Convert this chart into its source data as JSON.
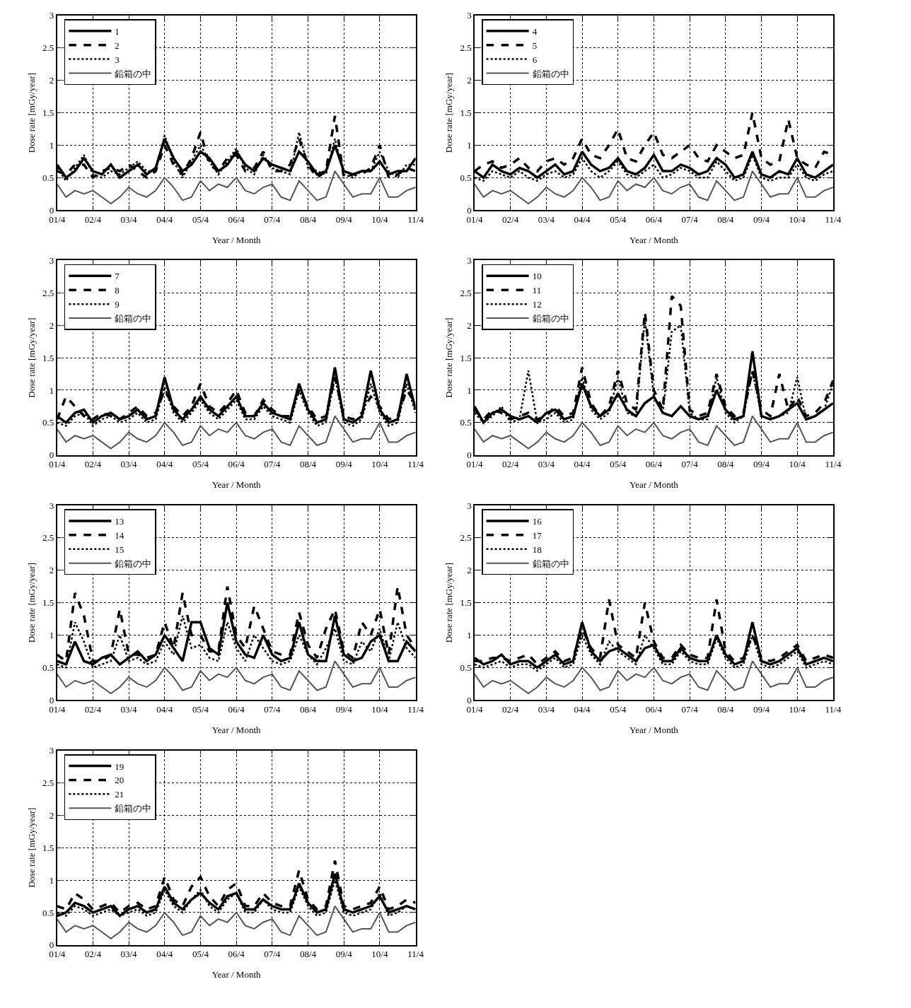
{
  "chart_data": [
    {
      "type": "line",
      "xlabel": "Year / Month",
      "ylabel": "Dose rate [mGy/year]",
      "ylim": [
        0,
        3
      ],
      "yticks": [
        0,
        0.5,
        1,
        1.5,
        2,
        2.5,
        3
      ],
      "grid": true,
      "legend": "top left",
      "categories": [
        "01/4",
        null,
        null,
        null,
        "02/4",
        null,
        null,
        null,
        "03/4",
        null,
        null,
        null,
        "04/4",
        null,
        null,
        null,
        "05/4",
        null,
        null,
        null,
        "06/4",
        null,
        null,
        null,
        "07/4",
        null,
        null,
        null,
        "08/4",
        null,
        null,
        null,
        "09/4",
        null,
        null,
        null,
        "10/4",
        null,
        null,
        null,
        "11/4"
      ],
      "series": [
        {
          "name": "1",
          "color": "#000000",
          "line_style": "solid",
          "values": [
            0.7,
            0.5,
            0.6,
            0.8,
            0.6,
            0.55,
            0.7,
            0.5,
            0.6,
            0.7,
            0.55,
            0.65,
            1.1,
            0.8,
            0.6,
            0.7,
            0.9,
            0.8,
            0.6,
            0.7,
            0.9,
            0.7,
            0.6,
            0.8,
            0.7,
            0.65,
            0.6,
            0.9,
            0.75,
            0.55,
            0.6,
            1.0,
            0.6,
            0.55,
            0.6,
            0.6,
            0.75,
            0.55,
            0.6,
            0.6,
            0.8
          ]
        },
        {
          "name": "2",
          "color": "#000000",
          "line_style": "dashed",
          "values": [
            0.6,
            0.55,
            0.7,
            0.7,
            0.5,
            0.6,
            0.65,
            0.6,
            0.7,
            0.6,
            0.5,
            0.6,
            1.0,
            0.7,
            0.55,
            0.8,
            1.2,
            0.7,
            0.6,
            0.8,
            0.85,
            0.6,
            0.65,
            0.9,
            0.6,
            0.6,
            0.7,
            1.1,
            0.7,
            0.5,
            0.6,
            1.45,
            0.5,
            0.55,
            0.55,
            0.65,
            1.0,
            0.5,
            0.55,
            0.65,
            0.6
          ]
        },
        {
          "name": "3",
          "color": "#000000",
          "line_style": "dotted",
          "values": [
            0.65,
            0.45,
            0.65,
            0.85,
            0.55,
            0.5,
            0.6,
            0.55,
            0.65,
            0.75,
            0.6,
            0.6,
            1.15,
            0.75,
            0.5,
            0.75,
            1.0,
            0.75,
            0.55,
            0.75,
            0.95,
            0.65,
            0.55,
            0.85,
            0.65,
            0.6,
            0.55,
            1.2,
            0.65,
            0.6,
            0.55,
            1.1,
            0.55,
            0.5,
            0.6,
            0.6,
            0.9,
            0.6,
            0.5,
            0.7,
            0.7
          ]
        },
        {
          "name": "鉛箱の中",
          "color": "#555555",
          "line_style": "solid",
          "values": [
            0.4,
            0.2,
            0.3,
            0.25,
            0.3,
            0.2,
            0.1,
            0.2,
            0.35,
            0.25,
            0.2,
            0.3,
            0.5,
            0.35,
            0.15,
            0.2,
            0.45,
            0.3,
            0.4,
            0.35,
            0.5,
            0.3,
            0.25,
            0.35,
            0.4,
            0.2,
            0.15,
            0.45,
            0.3,
            0.15,
            0.2,
            0.6,
            0.4,
            0.2,
            0.25,
            0.25,
            0.5,
            0.2,
            0.2,
            0.3,
            0.35
          ]
        }
      ]
    },
    {
      "type": "line",
      "xlabel": "Year / Month",
      "ylabel": "Dose rate [mGy/year]",
      "ylim": [
        0,
        3
      ],
      "yticks": [
        0,
        0.5,
        1,
        1.5,
        2,
        2.5,
        3
      ],
      "grid": true,
      "legend": "top left",
      "categories": [
        "01/4",
        null,
        null,
        null,
        "02/4",
        null,
        null,
        null,
        "03/4",
        null,
        null,
        null,
        "04/4",
        null,
        null,
        null,
        "05/4",
        null,
        null,
        null,
        "06/4",
        null,
        null,
        null,
        "07/4",
        null,
        null,
        null,
        "08/4",
        null,
        null,
        null,
        "09/4",
        null,
        null,
        null,
        "10/4",
        null,
        null,
        null,
        "11/4"
      ],
      "series": [
        {
          "name": "4",
          "color": "#000000",
          "line_style": "solid",
          "values": [
            0.6,
            0.5,
            0.7,
            0.6,
            0.55,
            0.65,
            0.6,
            0.5,
            0.6,
            0.7,
            0.55,
            0.6,
            0.9,
            0.7,
            0.6,
            0.65,
            0.8,
            0.6,
            0.55,
            0.65,
            0.85,
            0.6,
            0.6,
            0.7,
            0.65,
            0.55,
            0.6,
            0.8,
            0.7,
            0.5,
            0.55,
            0.9,
            0.55,
            0.5,
            0.6,
            0.55,
            0.8,
            0.55,
            0.5,
            0.6,
            0.7
          ]
        },
        {
          "name": "5",
          "color": "#000000",
          "line_style": "dashed",
          "values": [
            0.6,
            0.7,
            0.75,
            0.65,
            0.7,
            0.8,
            0.65,
            0.6,
            0.75,
            0.8,
            0.7,
            0.8,
            1.1,
            0.85,
            0.8,
            1.0,
            1.25,
            0.8,
            0.75,
            1.0,
            1.2,
            0.85,
            0.8,
            0.9,
            1.0,
            0.8,
            0.75,
            1.0,
            0.9,
            0.8,
            0.85,
            1.5,
            0.8,
            0.7,
            0.75,
            1.4,
            0.8,
            0.7,
            0.65,
            0.9,
            0.85
          ]
        },
        {
          "name": "6",
          "color": "#000000",
          "line_style": "dotted",
          "values": [
            0.5,
            0.45,
            0.6,
            0.55,
            0.5,
            0.6,
            0.5,
            0.45,
            0.55,
            0.6,
            0.5,
            0.55,
            0.8,
            0.6,
            0.5,
            0.6,
            0.75,
            0.55,
            0.5,
            0.6,
            0.7,
            0.5,
            0.55,
            0.65,
            0.6,
            0.5,
            0.5,
            0.75,
            0.6,
            0.45,
            0.5,
            0.85,
            0.5,
            0.45,
            0.5,
            0.5,
            0.7,
            0.5,
            0.45,
            0.55,
            0.6
          ]
        },
        {
          "name": "鉛箱の中",
          "color": "#555555",
          "line_style": "solid",
          "values": [
            0.4,
            0.2,
            0.3,
            0.25,
            0.3,
            0.2,
            0.1,
            0.2,
            0.35,
            0.25,
            0.2,
            0.3,
            0.5,
            0.35,
            0.15,
            0.2,
            0.45,
            0.3,
            0.4,
            0.35,
            0.5,
            0.3,
            0.25,
            0.35,
            0.4,
            0.2,
            0.15,
            0.45,
            0.3,
            0.15,
            0.2,
            0.6,
            0.4,
            0.2,
            0.25,
            0.25,
            0.5,
            0.2,
            0.2,
            0.3,
            0.35
          ]
        }
      ]
    },
    {
      "type": "line",
      "xlabel": "Year / Month",
      "ylabel": "Dose rate [mGy/year]",
      "ylim": [
        0,
        3
      ],
      "yticks": [
        0,
        0.5,
        1,
        1.5,
        2,
        2.5,
        3
      ],
      "grid": true,
      "legend": "top left",
      "categories": [
        "01/4",
        null,
        null,
        null,
        "02/4",
        null,
        null,
        null,
        "03/4",
        null,
        null,
        null,
        "04/4",
        null,
        null,
        null,
        "05/4",
        null,
        null,
        null,
        "06/4",
        null,
        null,
        null,
        "07/4",
        null,
        null,
        null,
        "08/4",
        null,
        null,
        null,
        "09/4",
        null,
        null,
        null,
        "10/4",
        null,
        null,
        null,
        "11/4"
      ],
      "series": [
        {
          "name": "7",
          "color": "#000000",
          "line_style": "solid",
          "values": [
            0.6,
            0.5,
            0.65,
            0.7,
            0.5,
            0.6,
            0.65,
            0.55,
            0.6,
            0.7,
            0.55,
            0.6,
            1.2,
            0.7,
            0.55,
            0.7,
            0.9,
            0.7,
            0.6,
            0.75,
            0.9,
            0.6,
            0.6,
            0.8,
            0.65,
            0.6,
            0.55,
            1.1,
            0.7,
            0.5,
            0.55,
            1.35,
            0.55,
            0.5,
            0.6,
            1.3,
            0.7,
            0.5,
            0.55,
            1.25,
            0.7
          ]
        },
        {
          "name": "8",
          "color": "#000000",
          "line_style": "dashed",
          "values": [
            0.55,
            0.9,
            0.75,
            0.6,
            0.55,
            0.65,
            0.6,
            0.55,
            0.65,
            0.75,
            0.6,
            0.65,
            1.0,
            0.75,
            0.6,
            0.75,
            1.1,
            0.75,
            0.65,
            0.8,
            1.0,
            0.65,
            0.6,
            0.85,
            0.7,
            0.6,
            0.6,
            1.0,
            0.75,
            0.55,
            0.6,
            1.2,
            0.6,
            0.55,
            0.65,
            0.9,
            0.75,
            0.55,
            0.6,
            1.0,
            0.8
          ]
        },
        {
          "name": "9",
          "color": "#000000",
          "line_style": "dotted",
          "values": [
            0.5,
            0.45,
            0.6,
            0.65,
            0.45,
            0.55,
            0.6,
            0.5,
            0.55,
            0.65,
            0.5,
            0.55,
            1.05,
            0.65,
            0.5,
            0.65,
            0.85,
            0.65,
            0.55,
            0.7,
            0.85,
            0.55,
            0.55,
            0.75,
            0.6,
            0.55,
            0.5,
            1.0,
            0.65,
            0.45,
            0.5,
            1.2,
            0.5,
            0.45,
            0.55,
            1.1,
            0.65,
            0.45,
            0.5,
            1.1,
            0.65
          ]
        },
        {
          "name": "鉛箱の中",
          "color": "#555555",
          "line_style": "solid",
          "values": [
            0.4,
            0.2,
            0.3,
            0.25,
            0.3,
            0.2,
            0.1,
            0.2,
            0.35,
            0.25,
            0.2,
            0.3,
            0.5,
            0.35,
            0.15,
            0.2,
            0.45,
            0.3,
            0.4,
            0.35,
            0.5,
            0.3,
            0.25,
            0.35,
            0.4,
            0.2,
            0.15,
            0.45,
            0.3,
            0.15,
            0.2,
            0.6,
            0.4,
            0.2,
            0.25,
            0.25,
            0.5,
            0.2,
            0.2,
            0.3,
            0.35
          ]
        }
      ]
    },
    {
      "type": "line",
      "xlabel": "Year / Month",
      "ylabel": "Dose rate [mGy/year]",
      "ylim": [
        0,
        3
      ],
      "yticks": [
        0,
        0.5,
        1,
        1.5,
        2,
        2.5,
        3
      ],
      "grid": true,
      "legend": "top left",
      "categories": [
        "01/4",
        null,
        null,
        null,
        "02/4",
        null,
        null,
        null,
        "03/4",
        null,
        null,
        null,
        "04/4",
        null,
        null,
        null,
        "05/4",
        null,
        null,
        null,
        "06/4",
        null,
        null,
        null,
        "07/4",
        null,
        null,
        null,
        "08/4",
        null,
        null,
        null,
        "09/4",
        null,
        null,
        null,
        "10/4",
        null,
        null,
        null,
        "11/4"
      ],
      "series": [
        {
          "name": "10",
          "color": "#000000",
          "line_style": "solid",
          "values": [
            0.75,
            0.5,
            0.65,
            0.7,
            0.6,
            0.55,
            0.6,
            0.5,
            0.65,
            0.7,
            0.55,
            0.6,
            1.1,
            0.75,
            0.6,
            0.7,
            0.95,
            0.7,
            0.6,
            0.8,
            0.9,
            0.65,
            0.6,
            0.75,
            0.6,
            0.55,
            0.6,
            1.0,
            0.7,
            0.55,
            0.6,
            1.6,
            0.6,
            0.55,
            0.6,
            0.7,
            0.8,
            0.55,
            0.6,
            0.7,
            0.8
          ]
        },
        {
          "name": "11",
          "color": "#000000",
          "line_style": "dashed",
          "values": [
            0.7,
            0.55,
            0.7,
            0.65,
            0.55,
            0.6,
            0.65,
            0.55,
            0.6,
            0.75,
            0.6,
            0.65,
            1.35,
            0.8,
            0.6,
            0.75,
            1.3,
            0.8,
            0.7,
            2.2,
            1.0,
            0.7,
            2.45,
            2.3,
            0.7,
            0.6,
            0.65,
            1.25,
            0.75,
            0.6,
            0.65,
            1.3,
            0.7,
            0.6,
            1.25,
            0.7,
            0.9,
            0.6,
            0.65,
            0.8,
            1.15
          ]
        },
        {
          "name": "12",
          "color": "#000000",
          "line_style": "dotted",
          "values": [
            0.65,
            0.5,
            0.6,
            0.75,
            0.5,
            0.55,
            1.3,
            0.5,
            0.55,
            0.65,
            0.5,
            0.55,
            1.2,
            0.7,
            0.55,
            0.65,
            1.2,
            0.65,
            0.6,
            2.1,
            0.9,
            0.65,
            1.9,
            2.0,
            0.65,
            0.55,
            0.55,
            1.2,
            0.65,
            0.5,
            0.6,
            1.3,
            0.6,
            0.55,
            0.6,
            0.65,
            1.2,
            0.55,
            0.6,
            0.7,
            1.1
          ]
        },
        {
          "name": "鉛箱の中",
          "color": "#555555",
          "line_style": "solid",
          "values": [
            0.4,
            0.2,
            0.3,
            0.25,
            0.3,
            0.2,
            0.1,
            0.2,
            0.35,
            0.25,
            0.2,
            0.3,
            0.5,
            0.35,
            0.15,
            0.2,
            0.45,
            0.3,
            0.4,
            0.35,
            0.5,
            0.3,
            0.25,
            0.35,
            0.4,
            0.2,
            0.15,
            0.45,
            0.3,
            0.15,
            0.2,
            0.6,
            0.4,
            0.2,
            0.25,
            0.25,
            0.5,
            0.2,
            0.2,
            0.3,
            0.35
          ]
        }
      ]
    },
    {
      "type": "line",
      "xlabel": "Year / Month",
      "ylabel": "Dose rate [mGy/year]",
      "ylim": [
        0,
        3
      ],
      "yticks": [
        0,
        0.5,
        1,
        1.5,
        2,
        2.5,
        3
      ],
      "grid": true,
      "legend": "top left",
      "categories": [
        "01/4",
        null,
        null,
        null,
        "02/4",
        null,
        null,
        null,
        "03/4",
        null,
        null,
        null,
        "04/4",
        null,
        null,
        null,
        "05/4",
        null,
        null,
        null,
        "06/4",
        null,
        null,
        null,
        "07/4",
        null,
        null,
        null,
        "08/4",
        null,
        null,
        null,
        "09/4",
        null,
        null,
        null,
        "10/4",
        null,
        null,
        null,
        "11/4"
      ],
      "series": [
        {
          "name": "13",
          "color": "#000000",
          "line_style": "solid",
          "values": [
            0.6,
            0.55,
            0.9,
            0.6,
            0.55,
            0.65,
            0.7,
            0.55,
            0.65,
            0.75,
            0.6,
            0.7,
            1.0,
            0.8,
            0.6,
            1.2,
            1.2,
            0.8,
            0.7,
            1.5,
            0.9,
            0.7,
            0.65,
            1.0,
            0.7,
            0.6,
            0.65,
            1.2,
            0.7,
            0.6,
            0.6,
            1.3,
            0.7,
            0.6,
            0.65,
            0.9,
            1.0,
            0.6,
            0.6,
            0.9,
            0.75
          ]
        },
        {
          "name": "14",
          "color": "#000000",
          "line_style": "dashed",
          "values": [
            0.7,
            0.6,
            1.65,
            1.3,
            0.6,
            0.6,
            0.7,
            1.4,
            0.7,
            0.7,
            0.65,
            0.7,
            1.2,
            0.8,
            1.65,
            1.0,
            1.0,
            0.75,
            0.75,
            1.75,
            1.0,
            0.8,
            1.45,
            1.1,
            0.75,
            0.7,
            0.7,
            1.35,
            0.85,
            0.65,
            1.1,
            1.4,
            0.75,
            0.65,
            1.2,
            1.0,
            1.4,
            0.7,
            1.75,
            1.0,
            0.8
          ]
        },
        {
          "name": "15",
          "color": "#000000",
          "line_style": "dotted",
          "values": [
            0.55,
            0.5,
            1.2,
            0.9,
            0.5,
            0.55,
            0.6,
            1.0,
            0.6,
            0.65,
            0.55,
            0.6,
            0.9,
            0.7,
            1.3,
            0.8,
            0.85,
            0.65,
            0.6,
            1.2,
            0.8,
            0.6,
            1.0,
            0.8,
            0.6,
            0.55,
            0.6,
            1.0,
            0.7,
            0.55,
            0.8,
            1.1,
            0.6,
            0.55,
            0.9,
            0.75,
            1.1,
            0.6,
            1.2,
            0.8,
            0.65
          ]
        },
        {
          "name": "鉛箱の中",
          "color": "#555555",
          "line_style": "solid",
          "values": [
            0.4,
            0.2,
            0.3,
            0.25,
            0.3,
            0.2,
            0.1,
            0.2,
            0.35,
            0.25,
            0.2,
            0.3,
            0.5,
            0.35,
            0.15,
            0.2,
            0.45,
            0.3,
            0.4,
            0.35,
            0.5,
            0.3,
            0.25,
            0.35,
            0.4,
            0.2,
            0.15,
            0.45,
            0.3,
            0.15,
            0.2,
            0.6,
            0.4,
            0.2,
            0.25,
            0.25,
            0.5,
            0.2,
            0.2,
            0.3,
            0.35
          ]
        }
      ]
    },
    {
      "type": "line",
      "xlabel": "Year / Month",
      "ylabel": "Dose rate [mGy/year]",
      "ylim": [
        0,
        3
      ],
      "yticks": [
        0,
        0.5,
        1,
        1.5,
        2,
        2.5,
        3
      ],
      "grid": true,
      "legend": "top left",
      "categories": [
        "01/4",
        null,
        null,
        null,
        "02/4",
        null,
        null,
        null,
        "03/4",
        null,
        null,
        null,
        "04/4",
        null,
        null,
        null,
        "05/4",
        null,
        null,
        null,
        "06/4",
        null,
        null,
        null,
        "07/4",
        null,
        null,
        null,
        "08/4",
        null,
        null,
        null,
        "09/4",
        null,
        null,
        null,
        "10/4",
        null,
        null,
        null,
        "11/4"
      ],
      "series": [
        {
          "name": "16",
          "color": "#000000",
          "line_style": "solid",
          "values": [
            0.65,
            0.55,
            0.6,
            0.7,
            0.55,
            0.6,
            0.6,
            0.5,
            0.6,
            0.7,
            0.55,
            0.6,
            1.2,
            0.75,
            0.6,
            0.75,
            0.8,
            0.7,
            0.6,
            0.8,
            0.85,
            0.6,
            0.6,
            0.8,
            0.65,
            0.6,
            0.6,
            1.0,
            0.7,
            0.55,
            0.6,
            1.2,
            0.6,
            0.55,
            0.6,
            0.7,
            0.8,
            0.55,
            0.6,
            0.65,
            0.6
          ]
        },
        {
          "name": "17",
          "color": "#000000",
          "line_style": "dashed",
          "values": [
            0.6,
            0.6,
            0.65,
            0.65,
            0.6,
            0.65,
            0.7,
            0.55,
            0.65,
            0.75,
            0.6,
            0.65,
            1.1,
            0.8,
            0.65,
            1.55,
            0.85,
            0.75,
            0.65,
            1.5,
            0.9,
            0.65,
            0.65,
            0.85,
            0.7,
            0.65,
            0.65,
            1.55,
            0.75,
            0.6,
            0.65,
            1.0,
            0.65,
            0.6,
            0.65,
            0.75,
            0.85,
            0.6,
            0.65,
            0.7,
            0.65
          ]
        },
        {
          "name": "18",
          "color": "#000000",
          "line_style": "dotted",
          "values": [
            0.55,
            0.5,
            0.55,
            0.6,
            0.5,
            0.55,
            0.55,
            0.45,
            0.55,
            0.65,
            0.5,
            0.55,
            1.0,
            0.7,
            0.55,
            0.9,
            0.75,
            0.65,
            0.55,
            1.0,
            0.8,
            0.55,
            0.55,
            0.75,
            0.6,
            0.55,
            0.55,
            0.95,
            0.65,
            0.5,
            0.55,
            1.0,
            0.55,
            0.5,
            0.55,
            0.65,
            0.75,
            0.5,
            0.55,
            0.6,
            0.55
          ]
        },
        {
          "name": "鉛箱の中",
          "color": "#555555",
          "line_style": "solid",
          "values": [
            0.4,
            0.2,
            0.3,
            0.25,
            0.3,
            0.2,
            0.1,
            0.2,
            0.35,
            0.25,
            0.2,
            0.3,
            0.5,
            0.35,
            0.15,
            0.2,
            0.45,
            0.3,
            0.4,
            0.35,
            0.5,
            0.3,
            0.25,
            0.35,
            0.4,
            0.2,
            0.15,
            0.45,
            0.3,
            0.15,
            0.2,
            0.6,
            0.4,
            0.2,
            0.25,
            0.25,
            0.5,
            0.2,
            0.2,
            0.3,
            0.35
          ]
        }
      ]
    },
    {
      "type": "line",
      "xlabel": "Year / Month",
      "ylabel": "Dose rate [mGy/year]",
      "ylim": [
        0,
        3
      ],
      "yticks": [
        0,
        0.5,
        1,
        1.5,
        2,
        2.5,
        3
      ],
      "grid": true,
      "legend": "top left",
      "categories": [
        "01/4",
        null,
        null,
        null,
        "02/4",
        null,
        null,
        null,
        "03/4",
        null,
        null,
        null,
        "04/4",
        null,
        null,
        null,
        "05/4",
        null,
        null,
        null,
        "06/4",
        null,
        null,
        null,
        "07/4",
        null,
        null,
        null,
        "08/4",
        null,
        null,
        null,
        "09/4",
        null,
        null,
        null,
        "10/4",
        null,
        null,
        null,
        "11/4"
      ],
      "series": [
        {
          "name": "19",
          "color": "#000000",
          "line_style": "solid",
          "values": [
            0.45,
            0.5,
            0.65,
            0.6,
            0.5,
            0.55,
            0.6,
            0.45,
            0.55,
            0.6,
            0.5,
            0.55,
            0.9,
            0.65,
            0.55,
            0.7,
            0.8,
            0.65,
            0.55,
            0.75,
            0.8,
            0.55,
            0.55,
            0.7,
            0.6,
            0.55,
            0.55,
            0.95,
            0.65,
            0.5,
            0.55,
            1.1,
            0.55,
            0.5,
            0.55,
            0.6,
            0.75,
            0.5,
            0.55,
            0.6,
            0.55
          ]
        },
        {
          "name": "20",
          "color": "#000000",
          "line_style": "dashed",
          "values": [
            0.6,
            0.55,
            0.8,
            0.7,
            0.55,
            0.6,
            0.65,
            0.5,
            0.6,
            0.65,
            0.55,
            0.6,
            1.05,
            0.7,
            0.6,
            0.9,
            1.05,
            0.75,
            0.6,
            0.85,
            0.95,
            0.6,
            0.6,
            0.8,
            0.65,
            0.6,
            0.6,
            1.15,
            0.7,
            0.55,
            0.6,
            1.3,
            0.6,
            0.55,
            0.6,
            0.65,
            0.9,
            0.55,
            0.6,
            0.7,
            0.65
          ]
        },
        {
          "name": "21",
          "color": "#000000",
          "line_style": "dotted",
          "values": [
            0.5,
            0.45,
            0.6,
            0.55,
            0.45,
            0.5,
            0.55,
            0.45,
            0.5,
            0.55,
            0.45,
            0.5,
            0.85,
            0.6,
            0.5,
            0.7,
            0.85,
            0.6,
            0.5,
            0.7,
            0.8,
            0.5,
            0.5,
            0.7,
            0.55,
            0.5,
            0.5,
            0.9,
            0.6,
            0.45,
            0.5,
            1.0,
            0.5,
            0.45,
            0.5,
            0.55,
            0.8,
            0.45,
            0.5,
            0.6,
            0.55
          ]
        },
        {
          "name": "鉛箱の中",
          "color": "#555555",
          "line_style": "solid",
          "values": [
            0.4,
            0.2,
            0.3,
            0.25,
            0.3,
            0.2,
            0.1,
            0.2,
            0.35,
            0.25,
            0.2,
            0.3,
            0.5,
            0.35,
            0.15,
            0.2,
            0.45,
            0.3,
            0.4,
            0.35,
            0.5,
            0.3,
            0.25,
            0.35,
            0.4,
            0.2,
            0.15,
            0.45,
            0.3,
            0.15,
            0.2,
            0.6,
            0.4,
            0.2,
            0.25,
            0.25,
            0.5,
            0.2,
            0.2,
            0.3,
            0.35
          ]
        }
      ]
    }
  ]
}
